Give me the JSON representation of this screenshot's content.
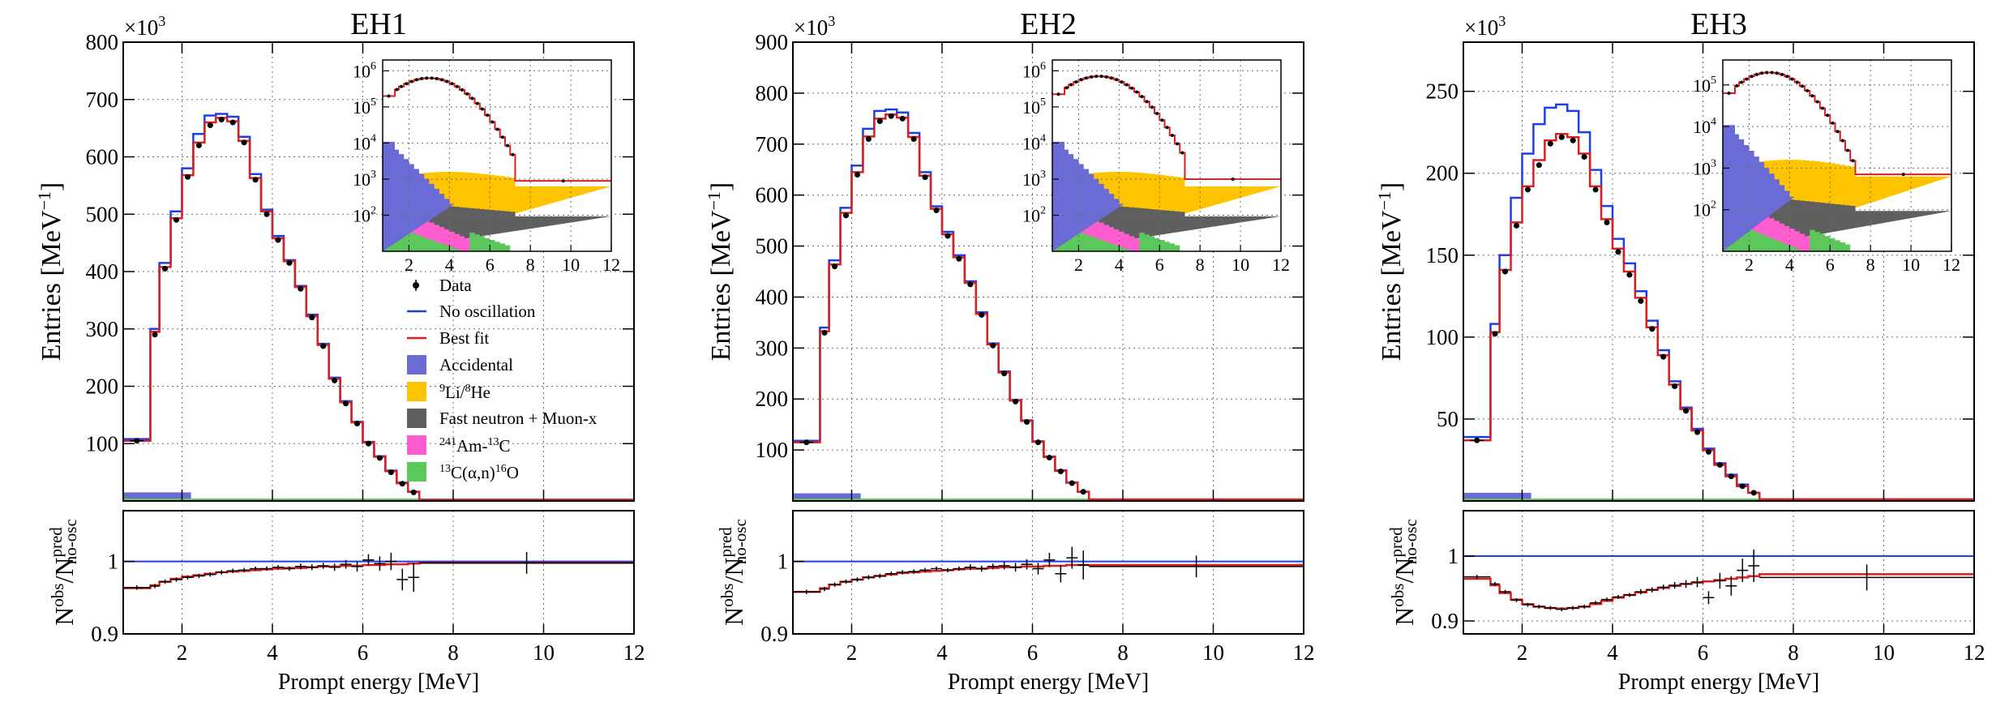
{
  "colors": {
    "data": "#000000",
    "no_osc": "#1f3fe0",
    "best_fit": "#d91f1f",
    "accidental": "#6b6bd6",
    "li_he": "#ffc400",
    "fast_neutron": "#5f5f5f",
    "amc": "#ff5cd0",
    "alpha_n": "#5cc85c",
    "grid": "#6e6e6e"
  },
  "legend": {
    "data": "Data",
    "no_osc": "No oscillation",
    "best_fit": "Best fit",
    "accidental": "Accidental",
    "li_sup1": "9",
    "li_mid": "Li/",
    "li_sup2": "8",
    "li_end": "He",
    "fast_neutron": "Fast neutron + Muon-x",
    "amc_sup": "241",
    "amc_mid": "Am-",
    "amc_sup2": "13",
    "amc_end": "C",
    "alpha_sup": "13",
    "alpha_mid": "C(α,n)",
    "alpha_sup2": "16",
    "alpha_end": "O"
  },
  "axes": {
    "ylabel_main": "Entries [MeV",
    "ylabel_exp": "−1",
    "ylabel_close": "]",
    "xlabel": "Prompt energy [MeV]",
    "ratio_N": "N",
    "ratio_obs": "obs",
    "ratio_pred": "pred",
    "ratio_noosc": "no-osc",
    "ratio_slash": "/",
    "multiplier_base": "×10",
    "multiplier_exp": "3"
  },
  "chart_data": [
    {
      "type": "line",
      "title": "EH1",
      "bin_edges": [
        0.7,
        1.3,
        1.5,
        1.75,
        2.0,
        2.25,
        2.5,
        2.75,
        3.0,
        3.25,
        3.5,
        3.75,
        4.0,
        4.25,
        4.5,
        4.75,
        5.0,
        5.25,
        5.5,
        5.75,
        6.0,
        6.25,
        6.5,
        6.75,
        7.0,
        7.25,
        12.0
      ],
      "data": [
        105,
        290,
        405,
        490,
        565,
        620,
        655,
        665,
        660,
        625,
        560,
        500,
        455,
        415,
        370,
        320,
        270,
        210,
        170,
        135,
        100,
        75,
        50,
        30,
        15,
        2
      ],
      "best_fit": [
        105,
        295,
        408,
        493,
        568,
        625,
        660,
        668,
        662,
        628,
        563,
        505,
        458,
        418,
        373,
        322,
        272,
        213,
        172,
        137,
        102,
        77,
        52,
        31,
        16,
        2
      ],
      "no_osc": [
        108,
        300,
        415,
        505,
        580,
        640,
        672,
        675,
        670,
        635,
        570,
        508,
        462,
        420,
        375,
        325,
        274,
        215,
        174,
        138,
        103,
        78,
        53,
        32,
        16,
        2
      ],
      "accidental_level": 15,
      "ylim": [
        0,
        800
      ],
      "yticks": [
        100,
        200,
        300,
        400,
        500,
        600,
        700,
        800
      ],
      "xlim": [
        0.7,
        12
      ],
      "xticks": [
        2,
        4,
        6,
        8,
        10,
        12
      ],
      "ratio_ylim": [
        0.9,
        1.07
      ],
      "ratio_yticks": [
        0.9,
        1
      ],
      "ratio_data": [
        0.964,
        0.966,
        0.972,
        0.975,
        0.978,
        0.98,
        0.982,
        0.985,
        0.987,
        0.988,
        0.99,
        0.99,
        0.992,
        0.99,
        0.993,
        0.992,
        0.994,
        0.992,
        0.996,
        0.993,
        1.002,
        0.997,
        1.0,
        0.975,
        0.978,
        0.998
      ],
      "ratio_errors": [
        0.003,
        0.003,
        0.003,
        0.003,
        0.003,
        0.003,
        0.003,
        0.003,
        0.003,
        0.003,
        0.003,
        0.003,
        0.003,
        0.003,
        0.004,
        0.004,
        0.004,
        0.005,
        0.006,
        0.007,
        0.008,
        0.01,
        0.012,
        0.015,
        0.02,
        0.015
      ],
      "ratio_fit": [
        0.963,
        0.967,
        0.972,
        0.976,
        0.979,
        0.981,
        0.983,
        0.985,
        0.986,
        0.987,
        0.988,
        0.989,
        0.99,
        0.991,
        0.991,
        0.992,
        0.993,
        0.993,
        0.994,
        0.994,
        0.995,
        0.995,
        0.996,
        0.996,
        0.997,
        0.998
      ]
    },
    {
      "type": "line",
      "title": "EH2",
      "bin_edges": [
        0.7,
        1.3,
        1.5,
        1.75,
        2.0,
        2.25,
        2.5,
        2.75,
        3.0,
        3.25,
        3.5,
        3.75,
        4.0,
        4.25,
        4.5,
        4.75,
        5.0,
        5.25,
        5.5,
        5.75,
        6.0,
        6.25,
        6.5,
        6.75,
        7.0,
        7.25,
        12.0
      ],
      "data": [
        115,
        330,
        460,
        560,
        640,
        710,
        745,
        755,
        750,
        710,
        635,
        570,
        520,
        475,
        425,
        365,
        305,
        250,
        195,
        155,
        115,
        85,
        58,
        35,
        18,
        3
      ],
      "best_fit": [
        115,
        333,
        464,
        565,
        645,
        715,
        750,
        758,
        752,
        714,
        638,
        573,
        523,
        478,
        428,
        367,
        307,
        252,
        197,
        157,
        116,
        86,
        59,
        36,
        18,
        3
      ],
      "no_osc": [
        118,
        340,
        472,
        575,
        658,
        730,
        765,
        768,
        762,
        722,
        645,
        578,
        528,
        482,
        431,
        370,
        309,
        254,
        198,
        158,
        117,
        87,
        60,
        36,
        18,
        3
      ],
      "accidental_level": 15,
      "ylim": [
        0,
        900
      ],
      "yticks": [
        100,
        200,
        300,
        400,
        500,
        600,
        700,
        800,
        900
      ],
      "xlim": [
        0.7,
        12
      ],
      "xticks": [
        2,
        4,
        6,
        8,
        10,
        12
      ],
      "ratio_ylim": [
        0.9,
        1.07
      ],
      "ratio_yticks": [
        0.9,
        1
      ],
      "ratio_data": [
        0.958,
        0.962,
        0.968,
        0.972,
        0.975,
        0.978,
        0.98,
        0.983,
        0.985,
        0.986,
        0.988,
        0.99,
        0.988,
        0.99,
        0.992,
        0.99,
        0.993,
        0.994,
        0.992,
        0.996,
        0.99,
        1.002,
        0.983,
        1.005,
        0.995,
        0.993
      ],
      "ratio_errors": [
        0.003,
        0.003,
        0.003,
        0.003,
        0.003,
        0.003,
        0.003,
        0.003,
        0.003,
        0.003,
        0.003,
        0.003,
        0.003,
        0.003,
        0.004,
        0.004,
        0.004,
        0.005,
        0.006,
        0.007,
        0.008,
        0.01,
        0.012,
        0.015,
        0.02,
        0.015
      ],
      "ratio_fit": [
        0.958,
        0.963,
        0.968,
        0.972,
        0.975,
        0.978,
        0.98,
        0.982,
        0.984,
        0.985,
        0.986,
        0.987,
        0.988,
        0.989,
        0.99,
        0.99,
        0.991,
        0.992,
        0.992,
        0.993,
        0.993,
        0.994,
        0.994,
        0.995,
        0.995,
        0.995
      ]
    },
    {
      "type": "line",
      "title": "EH3",
      "bin_edges": [
        0.7,
        1.3,
        1.5,
        1.75,
        2.0,
        2.25,
        2.5,
        2.75,
        3.0,
        3.25,
        3.5,
        3.75,
        4.0,
        4.25,
        4.5,
        4.75,
        5.0,
        5.25,
        5.5,
        5.75,
        6.0,
        6.25,
        6.5,
        6.75,
        7.0,
        7.25,
        12.0
      ],
      "data": [
        37,
        102,
        140,
        168,
        190,
        205,
        218,
        222,
        220,
        210,
        190,
        170,
        152,
        138,
        122,
        105,
        88,
        70,
        55,
        42,
        30,
        22,
        15,
        9,
        5,
        1
      ],
      "best_fit": [
        37,
        103,
        141,
        170,
        192,
        208,
        220,
        224,
        222,
        212,
        192,
        172,
        154,
        140,
        124,
        106,
        89,
        71,
        56,
        43,
        31,
        22,
        15,
        9,
        5,
        1
      ],
      "no_osc": [
        39,
        108,
        150,
        185,
        212,
        230,
        240,
        242,
        238,
        225,
        202,
        180,
        160,
        145,
        128,
        110,
        92,
        73,
        57,
        44,
        32,
        23,
        16,
        10,
        5,
        1
      ],
      "accidental_level": 5,
      "ylim": [
        0,
        280
      ],
      "yticks": [
        50,
        100,
        150,
        200,
        250
      ],
      "xlim": [
        0.7,
        12
      ],
      "xticks": [
        2,
        4,
        6,
        8,
        10,
        12
      ],
      "ratio_ylim": [
        0.88,
        1.07
      ],
      "ratio_yticks": [
        0.9,
        1
      ],
      "ratio_data": [
        0.968,
        0.957,
        0.945,
        0.932,
        0.925,
        0.922,
        0.92,
        0.918,
        0.92,
        0.922,
        0.928,
        0.933,
        0.937,
        0.94,
        0.945,
        0.948,
        0.952,
        0.955,
        0.957,
        0.96,
        0.936,
        0.962,
        0.954,
        0.978,
        0.985,
        0.967
      ],
      "ratio_errors": [
        0.003,
        0.003,
        0.003,
        0.003,
        0.003,
        0.003,
        0.003,
        0.003,
        0.003,
        0.003,
        0.003,
        0.003,
        0.003,
        0.003,
        0.004,
        0.004,
        0.004,
        0.005,
        0.006,
        0.008,
        0.01,
        0.012,
        0.015,
        0.018,
        0.025,
        0.02
      ],
      "ratio_fit": [
        0.965,
        0.955,
        0.943,
        0.933,
        0.926,
        0.922,
        0.92,
        0.919,
        0.92,
        0.922,
        0.926,
        0.931,
        0.936,
        0.94,
        0.944,
        0.948,
        0.951,
        0.954,
        0.957,
        0.959,
        0.961,
        0.963,
        0.965,
        0.967,
        0.969,
        0.972
      ]
    }
  ],
  "inset_data": {
    "xticks": [
      2,
      4,
      6,
      8,
      10,
      12
    ],
    "xlim": [
      0.7,
      12
    ],
    "panels": [
      {
        "yticks_exp": [
          2,
          3,
          4,
          5,
          6
        ],
        "ylog_range": [
          1,
          6.3
        ],
        "peak_log": 5.8,
        "tail_log": 2.95
      },
      {
        "yticks_exp": [
          2,
          3,
          4,
          5,
          6
        ],
        "ylog_range": [
          1,
          6.3
        ],
        "peak_log": 5.85,
        "tail_log": 3.0
      },
      {
        "yticks_exp": [
          2,
          3,
          4,
          5
        ],
        "ylog_range": [
          1,
          5.6
        ],
        "peak_log": 5.3,
        "tail_log": 2.85
      }
    ]
  }
}
